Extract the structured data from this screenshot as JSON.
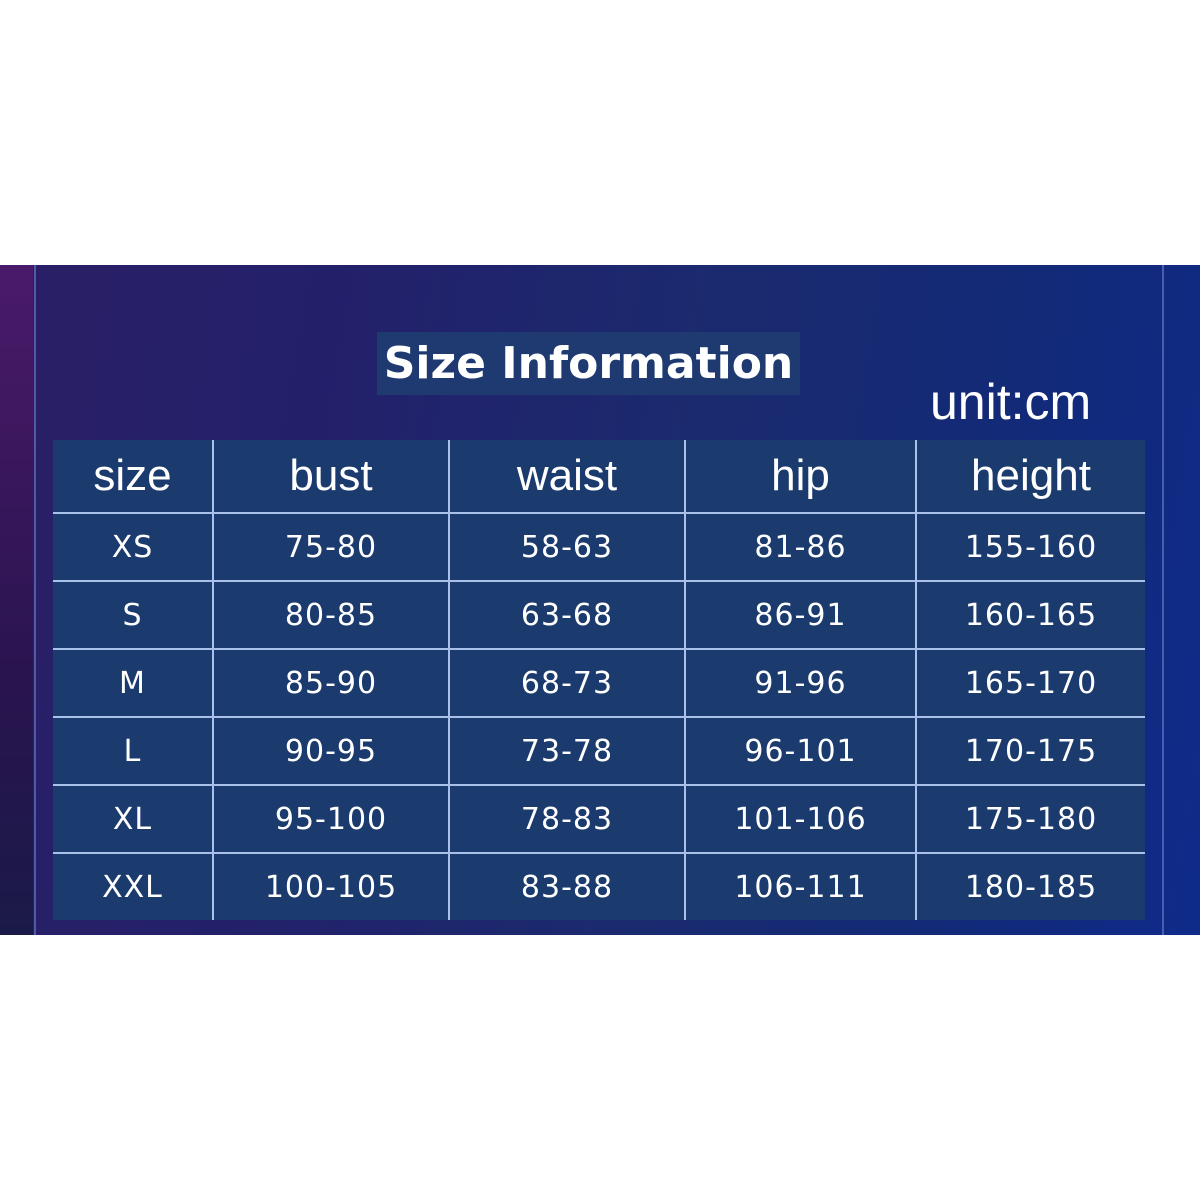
{
  "title": "Size Information",
  "unit": "unit:cm",
  "colors": {
    "banner": "#1f2a6e",
    "table_bg": "#1b3a6e",
    "grid": "#a9c0ea",
    "text": "#ffffff"
  },
  "table": {
    "headers": [
      "size",
      "bust",
      "waist",
      "hip",
      "height"
    ],
    "rows": [
      [
        "XS",
        "75-80",
        "58-63",
        "81-86",
        "155-160"
      ],
      [
        "S",
        "80-85",
        "63-68",
        "86-91",
        "160-165"
      ],
      [
        "M",
        "85-90",
        "68-73",
        "91-96",
        "165-170"
      ],
      [
        "L",
        "90-95",
        "73-78",
        "96-101",
        "170-175"
      ],
      [
        "XL",
        "95-100",
        "78-83",
        "101-106",
        "175-180"
      ],
      [
        "XXL",
        "100-105",
        "83-88",
        "106-111",
        "180-185"
      ]
    ]
  }
}
